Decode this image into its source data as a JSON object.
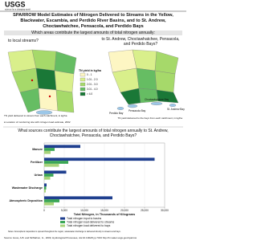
{
  "header": {
    "logo": "USGS",
    "tagline": "science for a changing world"
  },
  "title": "SPARROW Model Estimates of Nitrogen Delivered to Streams in the Yellow, Blackwater, Escambia, and Perdido River Basins, and to St. Andrew, Choctawhatchee, Pensacola, and Perdido Bays",
  "question1": {
    "text": "Which areas contribute the largest amounts of total nitrogen annually:",
    "left_heading": "to local streams?",
    "right_heading": "to St. Andrew, Choctawhatchee, Pensacola, and Perdido Bays?"
  },
  "map_legend": {
    "title": "TN yield in kg/ha",
    "classes": [
      {
        "label": "0 - 1",
        "color": "#fdf6c3"
      },
      {
        "label": "1.01 - 2.0",
        "color": "#d9ef8b"
      },
      {
        "label": "2.01 - 3.0",
        "color": "#a6d96a"
      },
      {
        "label": "3.01 - 4.0",
        "color": "#66bd63"
      },
      {
        "label": "> 4.0",
        "color": "#1a7837"
      }
    ]
  },
  "map_labels": [
    "Pensacola Bay",
    "Perdido Bay",
    "Choctawhatchee Bay",
    "St. Andrew Bay"
  ],
  "captions": {
    "left": "TN yield delivered to stream from each catchment, in kg/ha",
    "left_note": "Location of monitoring site with nitrogen load estimate, 2002",
    "right": "TN yield delivered to the bays from each catchment, in kg/ha"
  },
  "question2": "What sources contribute the largest amounts of total nitrogen annually to St. Andrew, Choctawhatchee, Pensacola, and Perdido Bays?",
  "chart_data": {
    "type": "hbar",
    "categories": [
      "Manure",
      "Fertilizer",
      "Urban",
      "Wastewater Discharge",
      "Atmospheric Deposition"
    ],
    "series": [
      {
        "name": "Total nitrogen input to basins",
        "color": "#1f3f8f",
        "values": [
          9000,
          27500,
          5500,
          600,
          17000
        ]
      },
      {
        "name": "Total nitrogen load delivered to streams",
        "color": "#3aa655",
        "values": [
          2600,
          6000,
          2300,
          500,
          3800
        ]
      },
      {
        "name": "Total nitrogen load delivered to bays",
        "color": "#a7d37a",
        "values": [
          1600,
          3700,
          1500,
          400,
          2400
        ]
      }
    ],
    "xlim": [
      0,
      30000
    ],
    "xticks": [
      0,
      {
        "value": 5000,
        "label": "5,000"
      },
      {
        "value": 10000,
        "label": "10,000"
      },
      {
        "value": 15000,
        "label": "15,000"
      },
      {
        "value": 20000,
        "label": "20,000"
      },
      {
        "value": 25000,
        "label": "25,000"
      },
      {
        "value": 30000,
        "label": "30,000"
      }
    ],
    "xlabel": "Total Nitrogen, in Thousands of Kilograms"
  },
  "notes": "Notes: Atmospheric deposition is spread throughout the region; wastewater discharge is delivered directly to streams and bays.",
  "source": "Source: Hoos, A.B. and McMahon, G., 2009, Hydrological Processes, doi:10.1002/hyp.7323   http://tn.water.usgs.gov/sparrow"
}
